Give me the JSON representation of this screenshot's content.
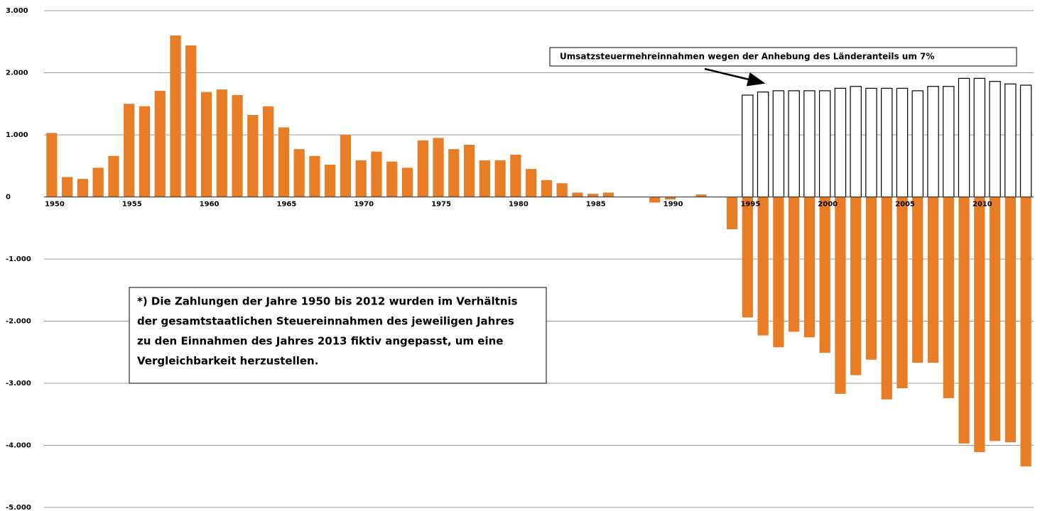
{
  "chart_data": {
    "type": "bar",
    "categories": [
      "1950",
      null,
      null,
      null,
      null,
      "1955",
      null,
      null,
      null,
      null,
      "1960",
      null,
      null,
      null,
      null,
      "1965",
      null,
      null,
      null,
      null,
      "1970",
      null,
      null,
      null,
      null,
      "1975",
      null,
      null,
      null,
      null,
      "1980",
      null,
      null,
      null,
      null,
      "1985",
      null,
      null,
      null,
      null,
      "1990",
      null,
      null,
      null,
      null,
      "1995",
      null,
      null,
      null,
      null,
      "2000",
      null,
      null,
      null,
      null,
      "2005",
      null,
      null,
      null,
      null,
      "2010",
      null,
      null,
      null
    ],
    "series": [
      {
        "color": "#e87d25",
        "values": [
          1030,
          320,
          290,
          470,
          660,
          1500,
          1460,
          1710,
          2600,
          2440,
          1690,
          1730,
          1640,
          1320,
          1460,
          1120,
          770,
          660,
          520,
          1000,
          590,
          730,
          570,
          470,
          910,
          950,
          770,
          840,
          590,
          590,
          680,
          450,
          270,
          220,
          70,
          50,
          70,
          0,
          0,
          -90,
          -40,
          0,
          40,
          0,
          -520,
          -1940,
          -2230,
          -2420,
          -2170,
          -2260,
          -2510,
          -3170,
          -2870,
          -2620,
          -3260,
          -3080,
          -2670,
          -2670,
          -3240,
          -3970,
          -4110,
          -3930,
          -3950,
          -4340
        ]
      },
      {
        "color": "#ffffff",
        "edgecolor": "#000000",
        "values": [
          null,
          null,
          null,
          null,
          null,
          null,
          null,
          null,
          null,
          null,
          null,
          null,
          null,
          null,
          null,
          null,
          null,
          null,
          null,
          null,
          null,
          null,
          null,
          null,
          null,
          null,
          null,
          null,
          null,
          null,
          null,
          null,
          null,
          null,
          null,
          null,
          null,
          null,
          null,
          null,
          null,
          null,
          null,
          null,
          null,
          1640,
          1690,
          1710,
          1710,
          1710,
          1710,
          1750,
          1780,
          1750,
          1750,
          1750,
          1710,
          1780,
          1780,
          1910,
          1910,
          1860,
          1820,
          1800
        ]
      }
    ],
    "ylim": [
      -5000,
      3000
    ],
    "yticks": [
      {
        "value": -5000,
        "label": "-5.000"
      },
      {
        "value": -4000,
        "label": "-4.000"
      },
      {
        "value": -3000,
        "label": "-3.000"
      },
      {
        "value": -2000,
        "label": "-2.000"
      },
      {
        "value": -1000,
        "label": "-1.000"
      },
      0,
      {
        "value": 1000,
        "label": "1.000"
      },
      {
        "value": 2000,
        "label": "2.000"
      },
      {
        "value": 3000,
        "label": "3.000"
      }
    ],
    "grid": true,
    "annotations": [
      {
        "text": "Umsatzsteuermehreinnahmen wegen der Anhebung des Länderanteils um 7%"
      },
      {
        "lines": [
          "*) Die Zahlungen der Jahre 1950 bis  2012 wurden im Verhältnis",
          "der gesamtstaatlichen Steuereinnahmen des jeweiligen Jahres",
          "zu den Einnahmen des Jahres 2013 fiktiv angepasst, um eine",
          "Vergleichbarkeit herzustellen."
        ]
      }
    ]
  }
}
